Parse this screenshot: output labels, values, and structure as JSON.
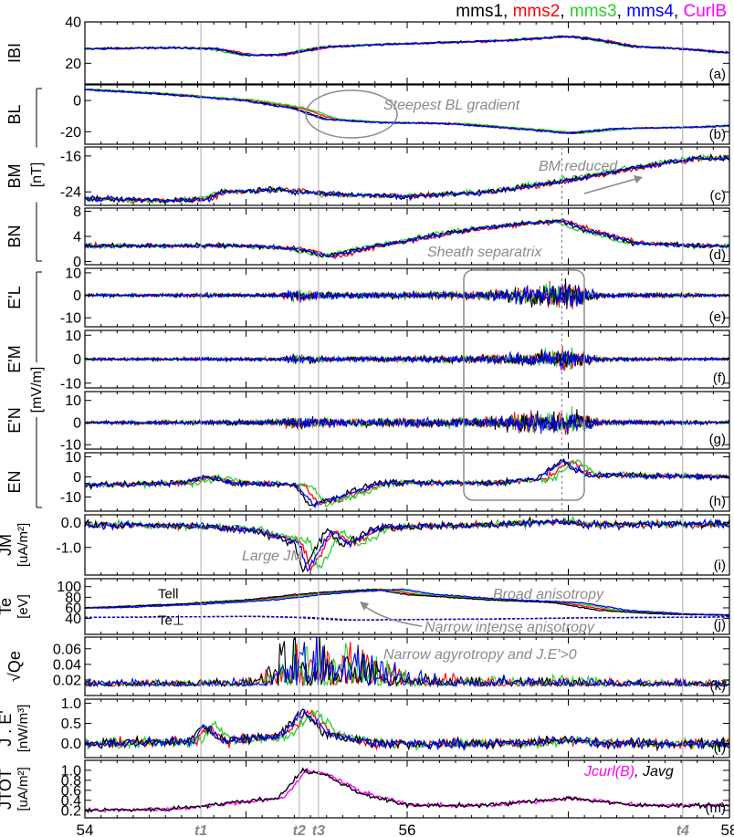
{
  "legend": [
    {
      "label": "mms1",
      "color": "#000000"
    },
    {
      "label": "mms2",
      "color": "#ff0000"
    },
    {
      "label": "mms3",
      "color": "#2ad02a"
    },
    {
      "label": "mms4",
      "color": "#0000ff"
    },
    {
      "label": "CurlB",
      "color": "#ff00ff"
    }
  ],
  "colors": {
    "mms1": "#000000",
    "mms2": "#ff0000",
    "mms3": "#2ad02a",
    "mms4": "#0000ff",
    "curlb": "#ff00ff",
    "annotation": "#8a8a8a",
    "vline": "#aaaaaa"
  },
  "time_markers": [
    {
      "label": "t1",
      "x": 54.72
    },
    {
      "label": "t2",
      "x": 55.33
    },
    {
      "label": "t3",
      "x": 55.45
    },
    {
      "label": "t4",
      "x": 57.71
    }
  ],
  "dashed_marker_x": 56.96,
  "group_units": [
    {
      "label": "[nT]",
      "panels": [
        "b",
        "d"
      ]
    },
    {
      "label": "[mV/m]",
      "panels": [
        "e",
        "h"
      ]
    }
  ],
  "chart_data": {
    "type": "line",
    "x_axis": {
      "xlim": [
        54,
        58
      ],
      "ticks": [
        54,
        56,
        58
      ],
      "tick_labels": [
        "54",
        "56",
        "58"
      ]
    },
    "panels": [
      {
        "id": "a",
        "tag": "(a)",
        "ylabel": "IBI",
        "yunit": "",
        "ylim": [
          10,
          40
        ],
        "yticks": [
          20,
          40
        ],
        "series": {
          "mode": "4sc",
          "knots": [
            [
              54,
              27
            ],
            [
              54.5,
              27.5
            ],
            [
              54.8,
              27
            ],
            [
              55.0,
              24
            ],
            [
              55.2,
              24
            ],
            [
              55.5,
              28
            ],
            [
              55.8,
              29
            ],
            [
              56.2,
              30
            ],
            [
              56.6,
              31
            ],
            [
              57.0,
              33
            ],
            [
              57.2,
              31
            ],
            [
              57.4,
              28
            ],
            [
              57.7,
              27
            ],
            [
              58,
              25
            ]
          ],
          "offsets": [
            0,
            0.04,
            -0.03,
            0.02
          ],
          "noise": 0.4
        }
      },
      {
        "id": "b",
        "tag": "(b)",
        "ylabel": "BL",
        "yunit": "",
        "ylim": [
          -28,
          10
        ],
        "yticks": [
          0,
          -20
        ],
        "series": {
          "mode": "4sc",
          "knots": [
            [
              54,
              7
            ],
            [
              54.5,
              4
            ],
            [
              55.0,
              0
            ],
            [
              55.3,
              -5
            ],
            [
              55.5,
              -12
            ],
            [
              55.8,
              -14
            ],
            [
              56.3,
              -15
            ],
            [
              56.8,
              -19
            ],
            [
              57.0,
              -21
            ],
            [
              57.3,
              -18
            ],
            [
              57.8,
              -17
            ],
            [
              58,
              -16
            ]
          ],
          "offsets": [
            0,
            0.05,
            0.08,
            -0.02
          ],
          "noise": 0.4
        }
      },
      {
        "id": "c",
        "tag": "(c)",
        "ylabel": "BM",
        "yunit": "",
        "ylim": [
          -27,
          -14
        ],
        "yticks": [
          -16,
          -24
        ],
        "series": {
          "mode": "4sc",
          "knots": [
            [
              54,
              -25.5
            ],
            [
              54.5,
              -26
            ],
            [
              54.75,
              -25.5
            ],
            [
              54.85,
              -24
            ],
            [
              55.2,
              -23.5
            ],
            [
              55.5,
              -24.5
            ],
            [
              56.0,
              -25
            ],
            [
              56.5,
              -24
            ],
            [
              56.9,
              -22
            ],
            [
              57.2,
              -20
            ],
            [
              57.5,
              -18
            ],
            [
              57.8,
              -16.5
            ],
            [
              58,
              -16.5
            ]
          ],
          "offsets": [
            0,
            0.04,
            -0.03,
            0.02
          ],
          "noise": 0.5
        }
      },
      {
        "id": "d",
        "tag": "(d)",
        "ylabel": "BN",
        "yunit": "",
        "ylim": [
          -0.5,
          8.5
        ],
        "yticks": [
          8,
          4,
          0
        ],
        "series": {
          "mode": "4sc",
          "knots": [
            [
              54,
              2.5
            ],
            [
              54.5,
              2.5
            ],
            [
              55.0,
              2.5
            ],
            [
              55.3,
              2.0
            ],
            [
              55.5,
              0.8
            ],
            [
              55.8,
              2.5
            ],
            [
              56.3,
              4.8
            ],
            [
              56.7,
              6.0
            ],
            [
              56.95,
              6.5
            ],
            [
              57.1,
              5.0
            ],
            [
              57.4,
              3.0
            ],
            [
              57.8,
              2.5
            ],
            [
              58,
              2.5
            ]
          ],
          "offsets": [
            0,
            0.05,
            -0.04,
            0.02
          ],
          "noise": 0.3
        }
      },
      {
        "id": "e",
        "tag": "(e)",
        "ylabel": "E'L",
        "yunit": "",
        "ylim": [
          -14,
          12
        ],
        "yticks": [
          10,
          0,
          -10
        ],
        "series": {
          "mode": "noise4",
          "amp_knots": [
            [
              54,
              1
            ],
            [
              55.2,
              1.5
            ],
            [
              55.3,
              4
            ],
            [
              55.6,
              2
            ],
            [
              56.5,
              3
            ],
            [
              56.8,
              7
            ],
            [
              57.0,
              9
            ],
            [
              57.2,
              2
            ],
            [
              58,
              1
            ]
          ]
        }
      },
      {
        "id": "f",
        "tag": "(f)",
        "ylabel": "E'M",
        "yunit": "",
        "ylim": [
          -12,
          12
        ],
        "yticks": [
          10,
          0,
          -10
        ],
        "series": {
          "mode": "noise4",
          "amp_knots": [
            [
              54,
              0.8
            ],
            [
              55.2,
              1.2
            ],
            [
              55.3,
              3
            ],
            [
              55.6,
              1.5
            ],
            [
              56.5,
              2.5
            ],
            [
              56.8,
              5
            ],
            [
              57.0,
              7
            ],
            [
              57.2,
              1.5
            ],
            [
              58,
              0.8
            ]
          ]
        }
      },
      {
        "id": "g",
        "tag": "(g)",
        "ylabel": "E'N",
        "yunit": "",
        "ylim": [
          -12,
          14
        ],
        "yticks": [
          10,
          0,
          -10
        ],
        "series": {
          "mode": "noise4",
          "amp_knots": [
            [
              54,
              1
            ],
            [
              55.2,
              2
            ],
            [
              55.3,
              5
            ],
            [
              55.6,
              2.5
            ],
            [
              56.5,
              4
            ],
            [
              56.8,
              7
            ],
            [
              57.0,
              9
            ],
            [
              57.2,
              2
            ],
            [
              58,
              1
            ]
          ]
        }
      },
      {
        "id": "h",
        "tag": "(h)",
        "ylabel": "EN",
        "yunit": "",
        "ylim": [
          -17,
          12
        ],
        "yticks": [
          10,
          0,
          -10
        ],
        "series": {
          "mode": "4sc",
          "knots": [
            [
              54,
              -4
            ],
            [
              54.6,
              -3
            ],
            [
              54.75,
              0
            ],
            [
              54.9,
              -3
            ],
            [
              55.3,
              -4
            ],
            [
              55.4,
              -14
            ],
            [
              55.6,
              -9
            ],
            [
              55.8,
              -3
            ],
            [
              56.5,
              -3
            ],
            [
              56.8,
              -1
            ],
            [
              56.95,
              8
            ],
            [
              57.1,
              1
            ],
            [
              58,
              0
            ]
          ],
          "offsets": [
            0,
            0.06,
            0.1,
            0.02
          ],
          "noise": 1.2
        }
      },
      {
        "id": "i",
        "tag": "(i)",
        "ylabel": "JM",
        "yunit": "[uA/m²]",
        "ylim": [
          -2.1,
          0.3
        ],
        "yticks": [
          0.0,
          -1.0
        ],
        "ytick_labels": [
          "0.0",
          "-1.0"
        ],
        "series": {
          "mode": "4sc",
          "knots": [
            [
              54,
              -0.1
            ],
            [
              54.7,
              -0.15
            ],
            [
              55.0,
              -0.3
            ],
            [
              55.3,
              -0.8
            ],
            [
              55.35,
              -1.9
            ],
            [
              55.5,
              -0.3
            ],
            [
              55.6,
              -0.9
            ],
            [
              55.8,
              -0.2
            ],
            [
              56.5,
              -0.1
            ],
            [
              56.9,
              0.05
            ],
            [
              57.1,
              -0.1
            ],
            [
              58,
              -0.05
            ]
          ],
          "offsets": [
            0,
            0.05,
            0.1,
            0.03
          ],
          "noise": 0.12
        }
      },
      {
        "id": "j",
        "tag": "(j)",
        "ylabel": "Te",
        "yunit": "[eV]",
        "ylim": [
          10,
          115
        ],
        "yticks": [
          100,
          80,
          60,
          40
        ],
        "series": {
          "mode": "te",
          "par_knots": [
            [
              54,
              60
            ],
            [
              54.5,
              66
            ],
            [
              55.0,
              75
            ],
            [
              55.3,
              85
            ],
            [
              55.5,
              90
            ],
            [
              55.8,
              95
            ],
            [
              56.0,
              85
            ],
            [
              56.5,
              75
            ],
            [
              56.9,
              70
            ],
            [
              57.2,
              55
            ],
            [
              57.6,
              48
            ],
            [
              58,
              46
            ]
          ],
          "perp_knots": [
            [
              54,
              42
            ],
            [
              55.0,
              44
            ],
            [
              55.3,
              42
            ],
            [
              55.6,
              37
            ],
            [
              56.0,
              38
            ],
            [
              56.5,
              39
            ],
            [
              57.0,
              41
            ],
            [
              57.5,
              42
            ],
            [
              58,
              43
            ]
          ],
          "par_label": "Tell",
          "perp_label": "Te⊥"
        }
      },
      {
        "id": "k",
        "tag": "(k)",
        "ylabel": "√Qe",
        "yunit": "",
        "ylim": [
          0,
          0.075
        ],
        "yticks": [
          0.06,
          0.04,
          0.02
        ],
        "ytick_labels": [
          "0.06",
          "0.04",
          "0.02"
        ],
        "series": {
          "mode": "spiky",
          "base": 0.012,
          "amp_knots": [
            [
              54,
              0.006
            ],
            [
              55.0,
              0.008
            ],
            [
              55.25,
              0.05
            ],
            [
              55.45,
              0.04
            ],
            [
              55.7,
              0.045
            ],
            [
              56.0,
              0.012
            ],
            [
              56.5,
              0.01
            ],
            [
              57.0,
              0.009
            ],
            [
              58,
              0.006
            ]
          ]
        }
      },
      {
        "id": "l",
        "tag": "(l)",
        "ylabel": "J . E'",
        "yunit": "[nW/m³]",
        "ylim": [
          -0.35,
          1.1
        ],
        "yticks": [
          1.0,
          0.5,
          0.0
        ],
        "ytick_labels": [
          "1.0",
          "0.5",
          "0.0"
        ],
        "series": {
          "mode": "4sc",
          "knots": [
            [
              54,
              0
            ],
            [
              54.65,
              0.05
            ],
            [
              54.72,
              0.45
            ],
            [
              54.85,
              0.05
            ],
            [
              55.2,
              0.2
            ],
            [
              55.35,
              0.8
            ],
            [
              55.5,
              0.2
            ],
            [
              55.8,
              0.0
            ],
            [
              56.7,
              0.0
            ],
            [
              57.0,
              0.1
            ],
            [
              57.2,
              0.0
            ],
            [
              58,
              0
            ]
          ],
          "offsets": [
            0,
            0.04,
            0.08,
            0.02
          ],
          "noise": 0.1
        }
      },
      {
        "id": "m",
        "tag": "(m)",
        "ylabel": "JTOT",
        "yunit": "[uA/m²]",
        "ylim": [
          0.05,
          1.2
        ],
        "yticks": [
          1.0,
          0.8,
          0.6,
          0.4,
          0.2
        ],
        "ytick_labels": [
          "1.0",
          "0.8",
          "0.6",
          "0.4",
          "0.2"
        ],
        "series": {
          "mode": "jtot",
          "knots": [
            [
              54,
              0.2
            ],
            [
              54.5,
              0.22
            ],
            [
              54.9,
              0.35
            ],
            [
              55.2,
              0.45
            ],
            [
              55.35,
              1.0
            ],
            [
              55.5,
              0.9
            ],
            [
              55.7,
              0.55
            ],
            [
              56.0,
              0.3
            ],
            [
              56.5,
              0.3
            ],
            [
              57.0,
              0.45
            ],
            [
              57.4,
              0.3
            ],
            [
              58,
              0.3
            ]
          ],
          "legend_curl": "Jcurl(B)",
          "legend_avg": "Javg"
        }
      }
    ]
  },
  "annotations": [
    {
      "panel": "b",
      "text": "Steepest BL gradient"
    },
    {
      "panel": "c",
      "text": "BM reduced"
    },
    {
      "panel": "d",
      "text": "Sheath separatrix"
    },
    {
      "panel": "i",
      "text": "Large JM"
    },
    {
      "panel": "j",
      "text": "Broad anisotropy"
    },
    {
      "panel": "j",
      "text": "Narrow intense anisotropy"
    },
    {
      "panel": "k",
      "text": "Narrow agyrotropy and J.E'>0"
    }
  ]
}
